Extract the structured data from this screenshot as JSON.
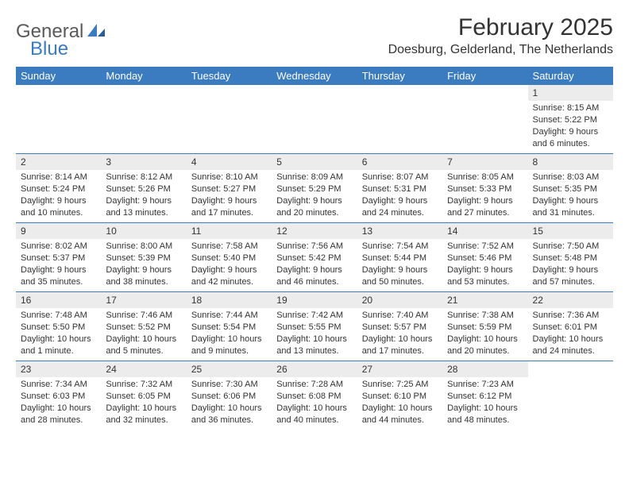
{
  "brand": {
    "general": "General",
    "blue": "Blue"
  },
  "title": "February 2025",
  "location": "Doesburg, Gelderland, The Netherlands",
  "colors": {
    "header_bg": "#3b7bbf",
    "header_text": "#ffffff",
    "daynum_bg": "#ececec",
    "border": "#3b7bbf",
    "text": "#333333",
    "logo_gray": "#5a5a5a",
    "logo_blue": "#3b7bbf"
  },
  "weekdays": [
    "Sunday",
    "Monday",
    "Tuesday",
    "Wednesday",
    "Thursday",
    "Friday",
    "Saturday"
  ],
  "weeks": [
    [
      null,
      null,
      null,
      null,
      null,
      null,
      {
        "n": "1",
        "sr": "Sunrise: 8:15 AM",
        "ss": "Sunset: 5:22 PM",
        "dl": "Daylight: 9 hours and 6 minutes."
      }
    ],
    [
      {
        "n": "2",
        "sr": "Sunrise: 8:14 AM",
        "ss": "Sunset: 5:24 PM",
        "dl": "Daylight: 9 hours and 10 minutes."
      },
      {
        "n": "3",
        "sr": "Sunrise: 8:12 AM",
        "ss": "Sunset: 5:26 PM",
        "dl": "Daylight: 9 hours and 13 minutes."
      },
      {
        "n": "4",
        "sr": "Sunrise: 8:10 AM",
        "ss": "Sunset: 5:27 PM",
        "dl": "Daylight: 9 hours and 17 minutes."
      },
      {
        "n": "5",
        "sr": "Sunrise: 8:09 AM",
        "ss": "Sunset: 5:29 PM",
        "dl": "Daylight: 9 hours and 20 minutes."
      },
      {
        "n": "6",
        "sr": "Sunrise: 8:07 AM",
        "ss": "Sunset: 5:31 PM",
        "dl": "Daylight: 9 hours and 24 minutes."
      },
      {
        "n": "7",
        "sr": "Sunrise: 8:05 AM",
        "ss": "Sunset: 5:33 PM",
        "dl": "Daylight: 9 hours and 27 minutes."
      },
      {
        "n": "8",
        "sr": "Sunrise: 8:03 AM",
        "ss": "Sunset: 5:35 PM",
        "dl": "Daylight: 9 hours and 31 minutes."
      }
    ],
    [
      {
        "n": "9",
        "sr": "Sunrise: 8:02 AM",
        "ss": "Sunset: 5:37 PM",
        "dl": "Daylight: 9 hours and 35 minutes."
      },
      {
        "n": "10",
        "sr": "Sunrise: 8:00 AM",
        "ss": "Sunset: 5:39 PM",
        "dl": "Daylight: 9 hours and 38 minutes."
      },
      {
        "n": "11",
        "sr": "Sunrise: 7:58 AM",
        "ss": "Sunset: 5:40 PM",
        "dl": "Daylight: 9 hours and 42 minutes."
      },
      {
        "n": "12",
        "sr": "Sunrise: 7:56 AM",
        "ss": "Sunset: 5:42 PM",
        "dl": "Daylight: 9 hours and 46 minutes."
      },
      {
        "n": "13",
        "sr": "Sunrise: 7:54 AM",
        "ss": "Sunset: 5:44 PM",
        "dl": "Daylight: 9 hours and 50 minutes."
      },
      {
        "n": "14",
        "sr": "Sunrise: 7:52 AM",
        "ss": "Sunset: 5:46 PM",
        "dl": "Daylight: 9 hours and 53 minutes."
      },
      {
        "n": "15",
        "sr": "Sunrise: 7:50 AM",
        "ss": "Sunset: 5:48 PM",
        "dl": "Daylight: 9 hours and 57 minutes."
      }
    ],
    [
      {
        "n": "16",
        "sr": "Sunrise: 7:48 AM",
        "ss": "Sunset: 5:50 PM",
        "dl": "Daylight: 10 hours and 1 minute."
      },
      {
        "n": "17",
        "sr": "Sunrise: 7:46 AM",
        "ss": "Sunset: 5:52 PM",
        "dl": "Daylight: 10 hours and 5 minutes."
      },
      {
        "n": "18",
        "sr": "Sunrise: 7:44 AM",
        "ss": "Sunset: 5:54 PM",
        "dl": "Daylight: 10 hours and 9 minutes."
      },
      {
        "n": "19",
        "sr": "Sunrise: 7:42 AM",
        "ss": "Sunset: 5:55 PM",
        "dl": "Daylight: 10 hours and 13 minutes."
      },
      {
        "n": "20",
        "sr": "Sunrise: 7:40 AM",
        "ss": "Sunset: 5:57 PM",
        "dl": "Daylight: 10 hours and 17 minutes."
      },
      {
        "n": "21",
        "sr": "Sunrise: 7:38 AM",
        "ss": "Sunset: 5:59 PM",
        "dl": "Daylight: 10 hours and 20 minutes."
      },
      {
        "n": "22",
        "sr": "Sunrise: 7:36 AM",
        "ss": "Sunset: 6:01 PM",
        "dl": "Daylight: 10 hours and 24 minutes."
      }
    ],
    [
      {
        "n": "23",
        "sr": "Sunrise: 7:34 AM",
        "ss": "Sunset: 6:03 PM",
        "dl": "Daylight: 10 hours and 28 minutes."
      },
      {
        "n": "24",
        "sr": "Sunrise: 7:32 AM",
        "ss": "Sunset: 6:05 PM",
        "dl": "Daylight: 10 hours and 32 minutes."
      },
      {
        "n": "25",
        "sr": "Sunrise: 7:30 AM",
        "ss": "Sunset: 6:06 PM",
        "dl": "Daylight: 10 hours and 36 minutes."
      },
      {
        "n": "26",
        "sr": "Sunrise: 7:28 AM",
        "ss": "Sunset: 6:08 PM",
        "dl": "Daylight: 10 hours and 40 minutes."
      },
      {
        "n": "27",
        "sr": "Sunrise: 7:25 AM",
        "ss": "Sunset: 6:10 PM",
        "dl": "Daylight: 10 hours and 44 minutes."
      },
      {
        "n": "28",
        "sr": "Sunrise: 7:23 AM",
        "ss": "Sunset: 6:12 PM",
        "dl": "Daylight: 10 hours and 48 minutes."
      },
      null
    ]
  ]
}
